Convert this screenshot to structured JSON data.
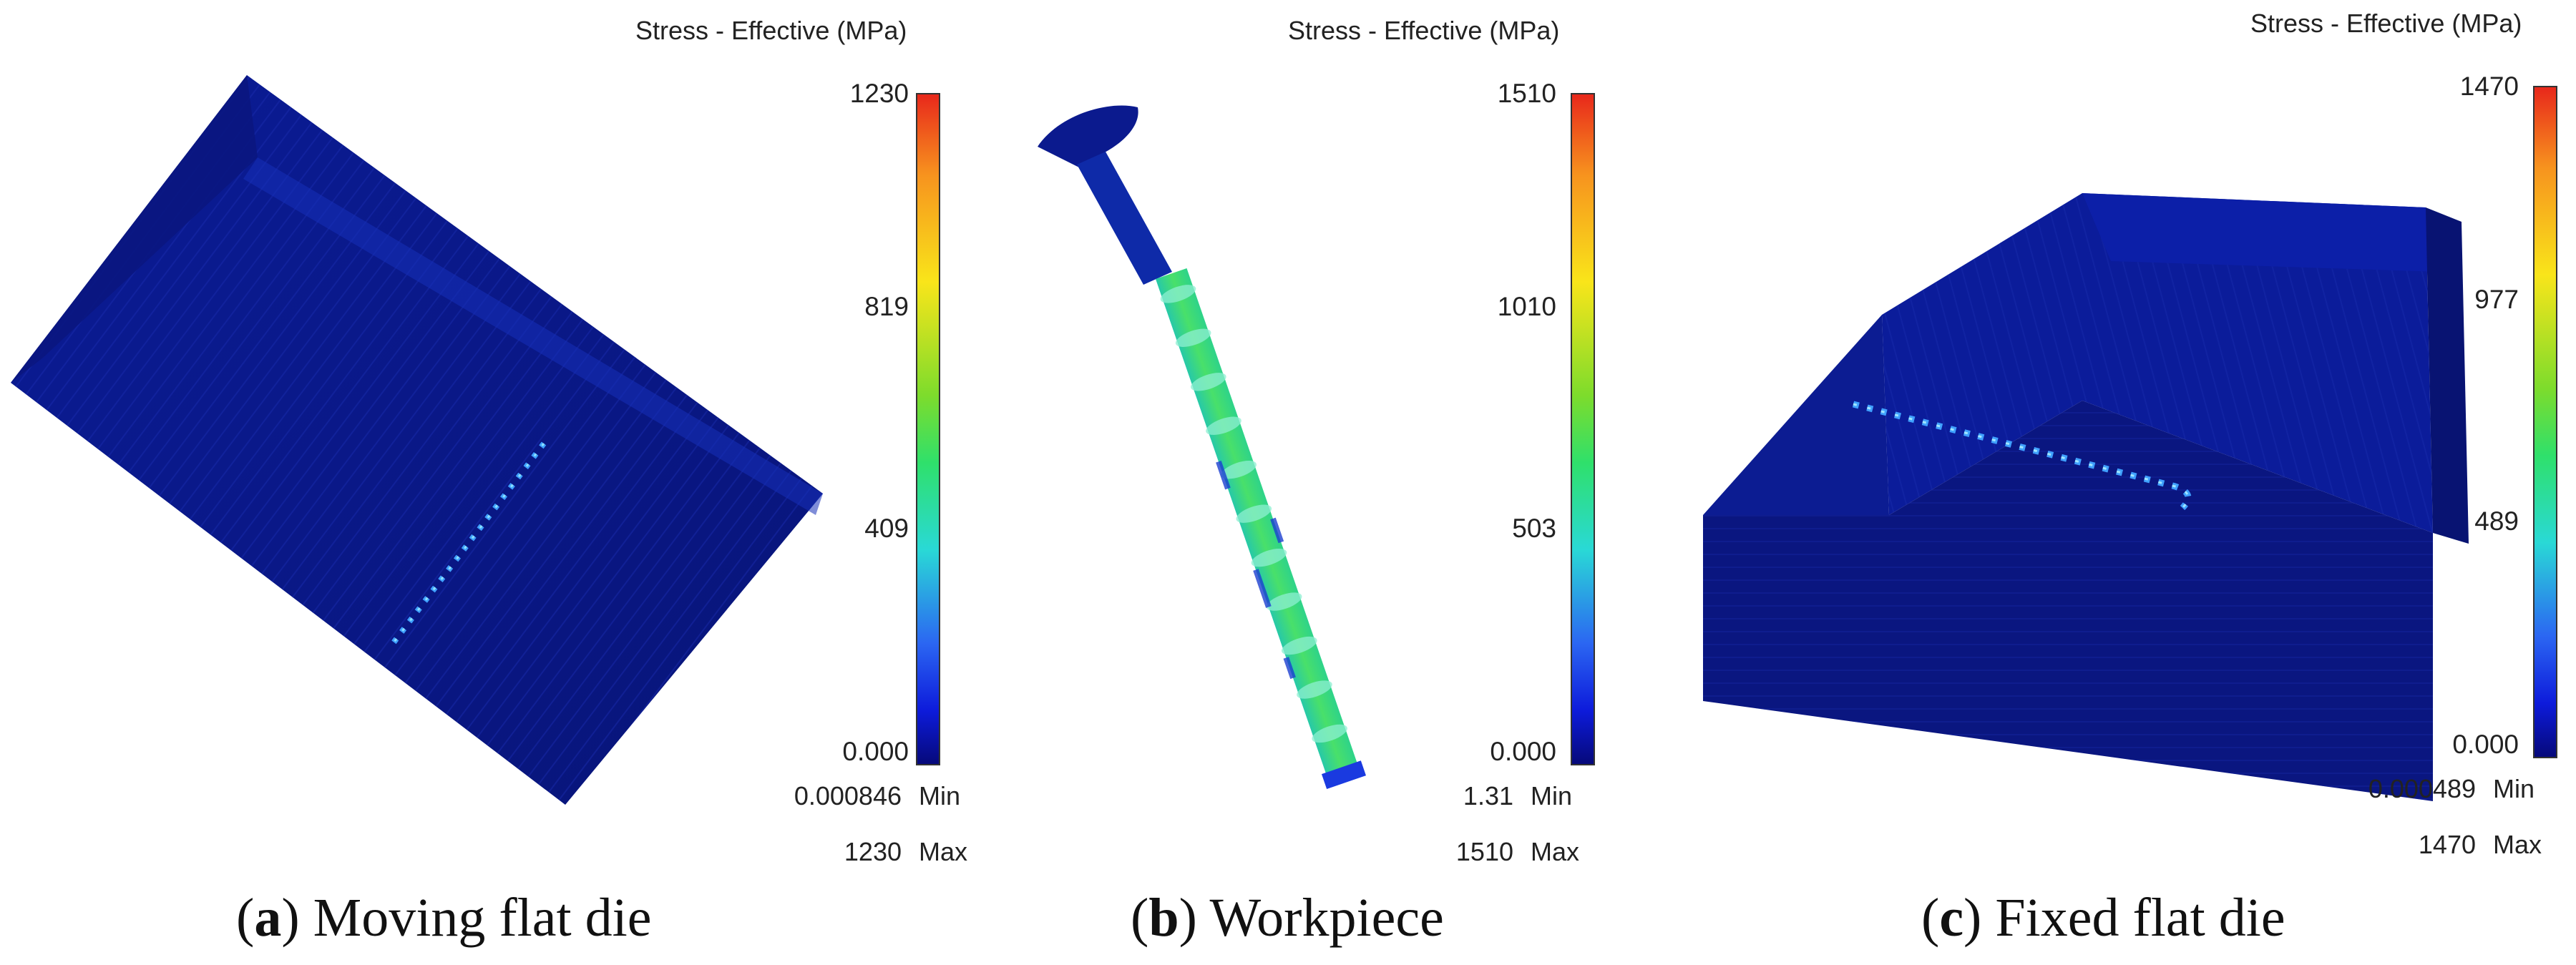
{
  "legend_title": "Stress - Effective (MPa)",
  "min_key": "Min",
  "max_key": "Max",
  "colors": {
    "low": "#06097a",
    "mid": "#2fe06b",
    "high": "#e8281b",
    "die_body": "#0a1a8c"
  },
  "panels": [
    {
      "caption_letter": "a",
      "caption_text": "Moving flat die",
      "ticks": [
        "1230",
        "819",
        "409",
        "0.000"
      ],
      "min_value": "0.000846",
      "max_value": "1230"
    },
    {
      "caption_letter": "b",
      "caption_text": "Workpiece",
      "ticks": [
        "1510",
        "1010",
        "503",
        "0.000"
      ],
      "min_value": "1.31",
      "max_value": "1510"
    },
    {
      "caption_letter": "c",
      "caption_text": "Fixed flat die",
      "ticks": [
        "1470",
        "977",
        "489",
        "0.000"
      ],
      "min_value": "0.000489",
      "max_value": "1470"
    }
  ]
}
